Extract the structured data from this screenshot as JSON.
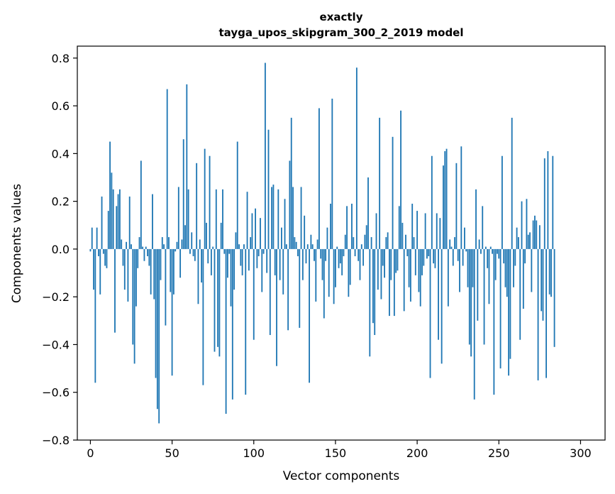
{
  "chart_data": {
    "type": "bar",
    "title": "exactly",
    "subtitle": "tayga_upos_skipgram_300_2_2019 model",
    "xlabel": "Vector components",
    "ylabel": "Components values",
    "xlim": [
      -8,
      315
    ],
    "ylim": [
      -0.8,
      0.85
    ],
    "xticks": [
      0,
      50,
      100,
      150,
      200,
      250,
      300
    ],
    "xtick_labels": [
      "0",
      "50",
      "100",
      "150",
      "200",
      "250",
      "300"
    ],
    "yticks": [
      -0.8,
      -0.6,
      -0.4,
      -0.2,
      0.0,
      0.2,
      0.4,
      0.6,
      0.8
    ],
    "ytick_labels": [
      "−0.8",
      "−0.6",
      "−0.4",
      "−0.2",
      "0.0",
      "0.2",
      "0.4",
      "0.6",
      "0.8"
    ],
    "bar_color": "#1f77b4",
    "grid": false,
    "values": [
      -0.01,
      0.09,
      -0.17,
      -0.56,
      0.09,
      -0.03,
      -0.19,
      0.22,
      -0.02,
      -0.07,
      -0.08,
      0.16,
      0.45,
      0.32,
      0.25,
      -0.35,
      0.18,
      0.23,
      0.25,
      0.04,
      -0.07,
      -0.17,
      0.03,
      -0.22,
      0.22,
      0.02,
      -0.4,
      -0.48,
      -0.24,
      -0.08,
      0.05,
      0.37,
      0.01,
      -0.05,
      0.01,
      -0.03,
      -0.07,
      -0.19,
      0.23,
      -0.21,
      -0.54,
      -0.67,
      -0.73,
      -0.13,
      0.05,
      0.02,
      -0.32,
      0.67,
      0.05,
      -0.18,
      -0.53,
      -0.19,
      -0.01,
      0.03,
      0.26,
      -0.12,
      0.04,
      0.46,
      0.1,
      0.69,
      0.25,
      -0.02,
      0.07,
      -0.03,
      -0.05,
      0.36,
      -0.23,
      0.04,
      -0.14,
      -0.57,
      0.42,
      0.11,
      -0.06,
      0.39,
      -0.11,
      0.01,
      -0.43,
      0.25,
      -0.41,
      -0.45,
      0.11,
      0.25,
      -0.02,
      -0.69,
      -0.12,
      -0.02,
      -0.24,
      -0.63,
      -0.17,
      0.07,
      0.45,
      0.02,
      -0.07,
      -0.11,
      0.02,
      -0.61,
      0.24,
      -0.09,
      0.05,
      0.15,
      -0.38,
      0.17,
      -0.08,
      -0.03,
      0.13,
      -0.18,
      -0.02,
      0.78,
      -0.1,
      0.5,
      -0.36,
      0.26,
      0.27,
      -0.11,
      -0.49,
      0.25,
      -0.13,
      0.09,
      -0.19,
      0.21,
      0.02,
      -0.34,
      0.37,
      0.55,
      0.26,
      0.05,
      0.03,
      -0.03,
      -0.33,
      0.26,
      -0.13,
      0.14,
      -0.06,
      0.02,
      -0.56,
      0.06,
      0.02,
      -0.05,
      -0.22,
      0.04,
      0.59,
      -0.04,
      -0.13,
      -0.29,
      -0.05,
      0.09,
      -0.2,
      0.19,
      0.63,
      -0.23,
      -0.16,
      0.01,
      -0.08,
      -0.06,
      -0.11,
      -0.03,
      0.06,
      0.18,
      -0.2,
      -0.15,
      0.19,
      0.05,
      -0.03,
      0.76,
      -0.05,
      -0.13,
      0.02,
      -0.07,
      0.06,
      0.1,
      0.3,
      -0.45,
      0.05,
      -0.31,
      -0.36,
      0.15,
      -0.17,
      0.55,
      -0.21,
      -0.07,
      -0.12,
      0.05,
      0.07,
      -0.28,
      -0.13,
      0.47,
      -0.28,
      -0.1,
      -0.09,
      0.18,
      0.58,
      0.11,
      -0.26,
      0.06,
      -0.03,
      -0.16,
      -0.22,
      0.19,
      0.05,
      -0.11,
      0.16,
      -0.18,
      -0.24,
      -0.11,
      -0.07,
      0.15,
      -0.04,
      -0.03,
      -0.54,
      0.39,
      -0.06,
      -0.08,
      0.15,
      -0.38,
      0.13,
      -0.48,
      0.35,
      0.41,
      0.42,
      -0.24,
      0.04,
      0.01,
      -0.07,
      0.05,
      0.36,
      -0.05,
      -0.18,
      0.43,
      -0.07,
      0.09,
      -0.01,
      -0.16,
      -0.4,
      -0.45,
      -0.16,
      -0.63,
      0.25,
      -0.3,
      0.04,
      -0.02,
      0.18,
      -0.4,
      0.01,
      -0.08,
      -0.23,
      0.01,
      -0.02,
      -0.61,
      -0.13,
      -0.02,
      -0.04,
      -0.5,
      0.39,
      -0.06,
      -0.16,
      -0.2,
      -0.53,
      -0.46,
      0.55,
      -0.16,
      -0.07,
      0.09,
      0.05,
      -0.38,
      0.2,
      -0.25,
      -0.06,
      0.21,
      0.06,
      0.07,
      -0.18,
      0.12,
      0.14,
      0.12,
      -0.55,
      0.1,
      -0.26,
      -0.3,
      0.38,
      -0.54,
      0.41,
      -0.19,
      -0.2,
      0.39,
      -0.41
    ]
  }
}
